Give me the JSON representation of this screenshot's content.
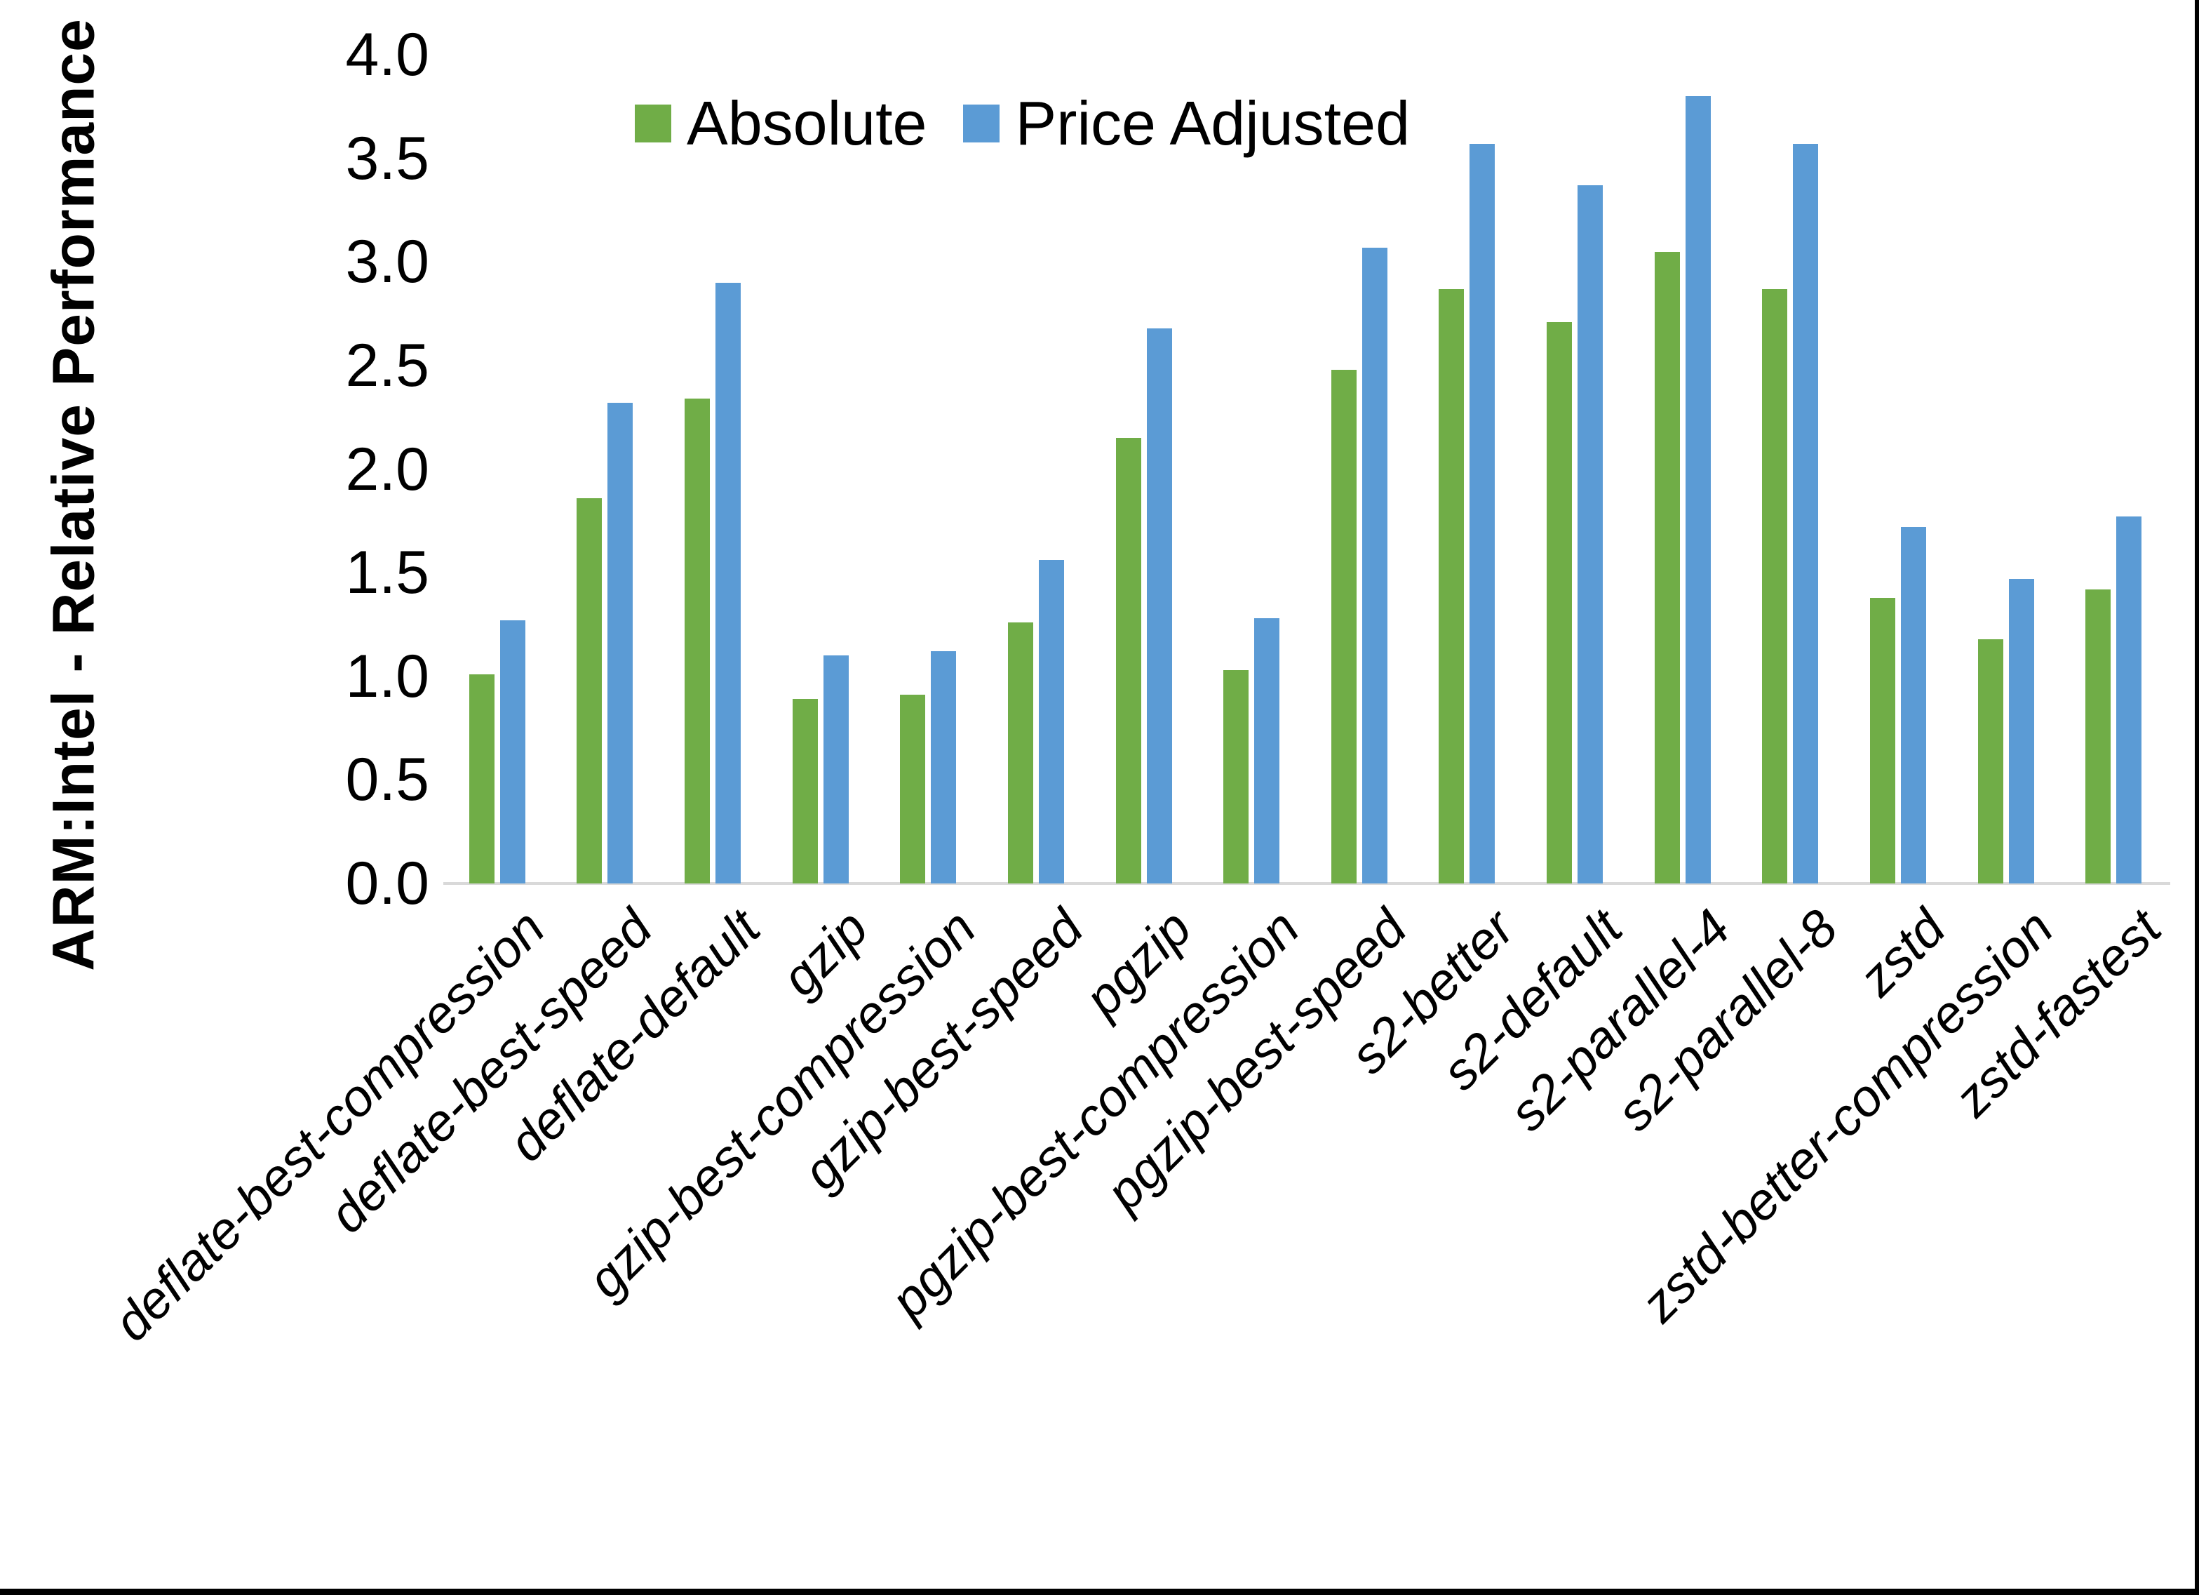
{
  "chart_data": {
    "type": "bar",
    "title": "",
    "ylabel": "ARM:Intel - Relative Performance",
    "xlabel": "",
    "ylim": [
      0.0,
      4.0
    ],
    "ytick_step": 0.5,
    "ytick_labels": [
      "0.0",
      "0.5",
      "1.0",
      "1.5",
      "2.0",
      "2.5",
      "3.0",
      "3.5",
      "4.0"
    ],
    "grid": false,
    "legend_position": "top-center",
    "axis_line_color": "#D9D9D9",
    "categories": [
      "deflate-best-compression",
      "deflate-best-speed",
      "deflate-default",
      "gzip",
      "gzip-best-compression",
      "gzip-best-speed",
      "pgzip",
      "pgzip-best-compression",
      "pgzip-best-speed",
      "s2-better",
      "s2-default",
      "s2-parallel-4",
      "s2-parallel-8",
      "zstd",
      "zstd-better-compression",
      "zstd-fastest"
    ],
    "series": [
      {
        "name": "Absolute",
        "color": "#70AD47",
        "values": [
          1.01,
          1.86,
          2.34,
          0.89,
          0.91,
          1.26,
          2.15,
          1.03,
          2.48,
          2.87,
          2.71,
          3.05,
          2.87,
          1.38,
          1.18,
          1.42
        ]
      },
      {
        "name": "Price Adjusted",
        "color": "#5B9BD5",
        "values": [
          1.27,
          2.32,
          2.9,
          1.1,
          1.12,
          1.56,
          2.68,
          1.28,
          3.07,
          3.57,
          3.37,
          3.8,
          3.57,
          1.72,
          1.47,
          1.77
        ]
      }
    ]
  }
}
